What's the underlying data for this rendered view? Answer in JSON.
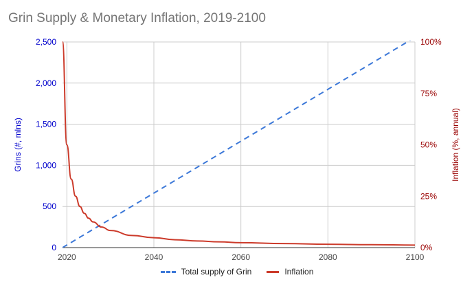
{
  "chart_data": {
    "type": "line",
    "title": "Grin Supply & Monetary Inflation, 2019-2100",
    "xlabel": "",
    "x_ticks": [
      "2020",
      "2040",
      "2060",
      "2080",
      "2100"
    ],
    "xlim": [
      2019,
      2100
    ],
    "y_left": {
      "label": "Grins (#, mlns)",
      "ticks": [
        "0",
        "500",
        "1,000",
        "1,500",
        "2,000",
        "2,500"
      ],
      "lim": [
        0,
        2500
      ],
      "color": "#0000cc"
    },
    "y_right": {
      "label": "Inflation (%, annual)",
      "ticks": [
        "0%",
        "25%",
        "50%",
        "75%",
        "100%"
      ],
      "lim": [
        0,
        100
      ],
      "color": "#990000"
    },
    "series": [
      {
        "name": "Total supply of Grin",
        "axis": "left",
        "style": "dashed",
        "color": "#3c78d8",
        "x": [
          2019,
          2100
        ],
        "y": [
          0,
          2555
        ]
      },
      {
        "name": "Inflation",
        "axis": "right",
        "style": "solid",
        "color": "#cc3b2b",
        "x": [
          2019,
          2020,
          2021,
          2022,
          2023,
          2024,
          2025,
          2026,
          2028,
          2030,
          2035,
          2040,
          2045,
          2050,
          2055,
          2060,
          2070,
          2080,
          2090,
          2100
        ],
        "y": [
          100,
          50,
          33.3,
          25,
          20,
          16.7,
          14.3,
          12.5,
          10,
          8.3,
          5.9,
          4.8,
          3.8,
          3.2,
          2.8,
          2.4,
          1.96,
          1.64,
          1.41,
          1.23
        ]
      }
    ],
    "grid": true,
    "legend": "bottom"
  }
}
